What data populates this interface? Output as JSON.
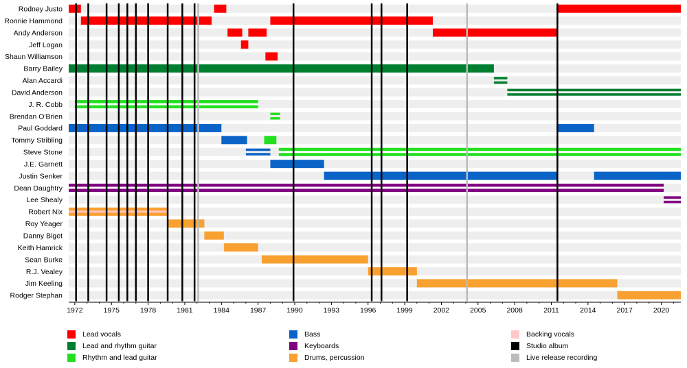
{
  "chart_data": {
    "type": "timeline",
    "x_range": [
      1971.5,
      2021.6
    ],
    "x_ticks": [
      1972,
      1975,
      1978,
      1981,
      1984,
      1987,
      1990,
      1993,
      1996,
      1999,
      2002,
      2005,
      2008,
      2011,
      2014,
      2017,
      2020
    ],
    "colors": {
      "lead_vocals": "#ff0000",
      "lead_rhythm_guitar": "#007f30",
      "rhythm_lead_guitar": "#22e01e",
      "bass": "#0a64c8",
      "keyboards": "#800080",
      "drums": "#f8a030",
      "backing_vocals": "#ffc8c8",
      "studio_album": "#000000",
      "live_recording": "#bbbbbb",
      "row_stripe": "#eeeeee",
      "row_alt": "#ffffff"
    },
    "members": [
      {
        "name": "Rodney Justo",
        "bars": [
          {
            "start": 1971.5,
            "end": 1972.5,
            "role": "lead_vocals"
          },
          {
            "start": 1983.4,
            "end": 1984.4,
            "role": "lead_vocals"
          },
          {
            "start": 2011.5,
            "end": 2021.6,
            "role": "lead_vocals"
          }
        ]
      },
      {
        "name": "Ronnie Hammond",
        "bars": [
          {
            "start": 1972.5,
            "end": 1983.2,
            "role": "lead_vocals"
          },
          {
            "start": 1988.0,
            "end": 2001.3,
            "role": "lead_vocals"
          }
        ]
      },
      {
        "name": "Andy Anderson",
        "bars": [
          {
            "start": 1984.5,
            "end": 1985.7,
            "role": "lead_vocals"
          },
          {
            "start": 1986.2,
            "end": 1987.7,
            "role": "lead_vocals"
          },
          {
            "start": 2001.3,
            "end": 2011.5,
            "role": "lead_vocals"
          }
        ]
      },
      {
        "name": "Jeff Logan",
        "bars": [
          {
            "start": 1985.6,
            "end": 1986.2,
            "role": "lead_vocals"
          }
        ]
      },
      {
        "name": "Shaun Williamson",
        "bars": [
          {
            "start": 1987.6,
            "end": 1988.6,
            "role": "lead_vocals"
          }
        ]
      },
      {
        "name": "Barry Bailey",
        "bars": [
          {
            "start": 1971.5,
            "end": 2006.3,
            "role": "lead_rhythm_guitar"
          }
        ]
      },
      {
        "name": "Alan Accardi",
        "bars": [
          {
            "start": 2006.3,
            "end": 2007.4,
            "role": "lead_rhythm_guitar",
            "style": "split"
          }
        ]
      },
      {
        "name": "David Anderson",
        "bars": [
          {
            "start": 2007.4,
            "end": 2021.6,
            "role": "lead_rhythm_guitar",
            "style": "split"
          }
        ]
      },
      {
        "name": "J. R. Cobb",
        "bars": [
          {
            "start": 1972.0,
            "end": 1987.0,
            "role": "rhythm_lead_guitar",
            "style": "outline"
          }
        ]
      },
      {
        "name": "Brendan O'Brien",
        "bars": [
          {
            "start": 1988.0,
            "end": 1988.8,
            "role": "rhythm_lead_guitar",
            "style": "split"
          }
        ]
      },
      {
        "name": "Paul Goddard",
        "bars": [
          {
            "start": 1971.5,
            "end": 1984.0,
            "role": "bass"
          },
          {
            "start": 2011.5,
            "end": 2014.5,
            "role": "bass"
          }
        ]
      },
      {
        "name": "Tommy Stribling",
        "bars": [
          {
            "start": 1984.0,
            "end": 1986.1,
            "role": "bass"
          },
          {
            "start": 1987.5,
            "end": 1988.5,
            "role": "rhythm_lead_guitar"
          }
        ]
      },
      {
        "name": "Steve Stone",
        "bars": [
          {
            "start": 1986.0,
            "end": 1988.0,
            "role": "bass",
            "style": "split"
          },
          {
            "start": 1988.7,
            "end": 2021.6,
            "role": "rhythm_lead_guitar",
            "style": "outline"
          }
        ]
      },
      {
        "name": "J.E. Garnett",
        "bars": [
          {
            "start": 1988.0,
            "end": 1992.4,
            "role": "bass"
          }
        ]
      },
      {
        "name": "Justin Senker",
        "bars": [
          {
            "start": 1992.4,
            "end": 2011.5,
            "role": "bass"
          },
          {
            "start": 2014.5,
            "end": 2021.6,
            "role": "bass"
          }
        ]
      },
      {
        "name": "Dean Daughtry",
        "bars": [
          {
            "start": 1971.5,
            "end": 2020.2,
            "role": "keyboards",
            "style": "outline"
          }
        ]
      },
      {
        "name": "Lee Shealy",
        "bars": [
          {
            "start": 2020.2,
            "end": 2021.6,
            "role": "keyboards",
            "style": "split"
          }
        ]
      },
      {
        "name": "Robert Nix",
        "bars": [
          {
            "start": 1971.5,
            "end": 1979.6,
            "role": "drums",
            "secondary": "backing_vocals"
          }
        ]
      },
      {
        "name": "Roy Yeager",
        "bars": [
          {
            "start": 1979.6,
            "end": 1982.6,
            "role": "drums"
          }
        ]
      },
      {
        "name": "Danny Biget",
        "bars": [
          {
            "start": 1982.6,
            "end": 1984.2,
            "role": "drums"
          }
        ]
      },
      {
        "name": "Keith Hamrick",
        "bars": [
          {
            "start": 1984.2,
            "end": 1987.0,
            "role": "drums"
          }
        ]
      },
      {
        "name": "Sean Burke",
        "bars": [
          {
            "start": 1987.3,
            "end": 1996.0,
            "role": "drums"
          }
        ]
      },
      {
        "name": "R.J. Vealey",
        "bars": [
          {
            "start": 1996.0,
            "end": 2000.0,
            "role": "drums"
          }
        ]
      },
      {
        "name": "Jim Keeling",
        "bars": [
          {
            "start": 2000.0,
            "end": 2016.4,
            "role": "drums"
          }
        ]
      },
      {
        "name": "Rodger Stephan",
        "bars": [
          {
            "start": 2016.4,
            "end": 2021.6,
            "role": "drums"
          }
        ]
      }
    ],
    "studio_albums": [
      1972.1,
      1973.1,
      1974.6,
      1975.6,
      1976.3,
      1977.0,
      1978.0,
      1979.6,
      1980.8,
      1981.8,
      1989.9,
      1996.3,
      1997.1,
      1999.2,
      2011.5
    ],
    "live_recordings": [
      1982.1,
      2004.1
    ]
  },
  "legend": {
    "items": [
      {
        "label": "Lead vocals",
        "color": "#ff0000"
      },
      {
        "label": "Lead and rhythm guitar",
        "color": "#007f30"
      },
      {
        "label": "Rhythm and lead guitar",
        "color": "#22e01e"
      },
      {
        "label": "Bass",
        "color": "#0a64c8"
      },
      {
        "label": "Keyboards",
        "color": "#800080"
      },
      {
        "label": "Drums, percussion",
        "color": "#f8a030"
      },
      {
        "label": "Backing vocals",
        "color": "#ffc8c8"
      },
      {
        "label": "Studio album",
        "color": "#000000"
      },
      {
        "label": "Live release recording",
        "color": "#bbbbbb"
      }
    ]
  }
}
